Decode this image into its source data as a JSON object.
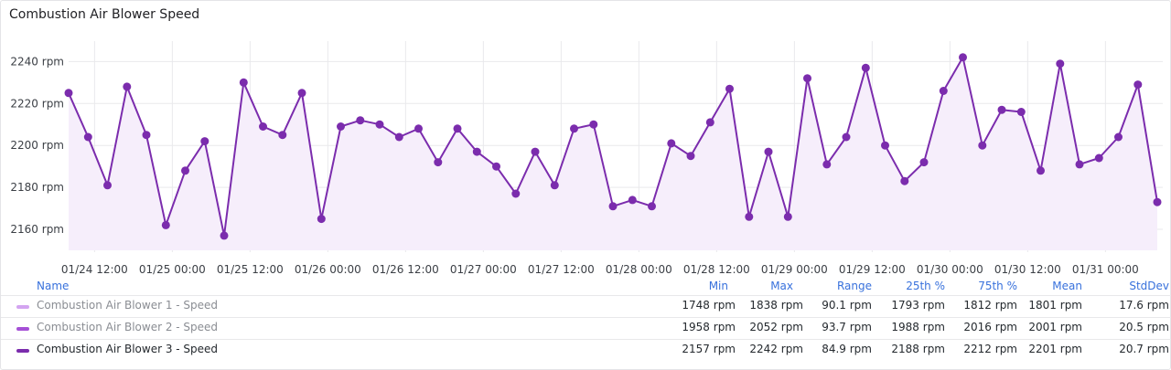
{
  "panel": {
    "title": "Combustion Air Blower Speed"
  },
  "colors": {
    "series": "#7b2cad",
    "fill": "#f6eefb",
    "grid": "#e9e9ec"
  },
  "chart_data": {
    "type": "line",
    "title": "Combustion Air Blower Speed",
    "y_unit": "rpm",
    "ylim": [
      2150,
      2248
    ],
    "xlim": [
      "01/24 08:00",
      "01/31 20:00"
    ],
    "y_ticks": [
      "2160 rpm",
      "2180 rpm",
      "2200 rpm",
      "2220 rpm",
      "2240 rpm"
    ],
    "y_tick_values": [
      2160,
      2180,
      2200,
      2220,
      2240
    ],
    "x_ticks": [
      "01/24 12:00",
      "01/25 00:00",
      "01/25 12:00",
      "01/26 00:00",
      "01/26 12:00",
      "01/27 00:00",
      "01/27 12:00",
      "01/28 00:00",
      "01/28 12:00",
      "01/29 00:00",
      "01/29 12:00",
      "01/30 00:00",
      "01/30 12:00",
      "01/31 00:00"
    ],
    "x_tick_hours": [
      4,
      16,
      28,
      40,
      52,
      64,
      76,
      88,
      100,
      112,
      124,
      136,
      148,
      160
    ],
    "x_hours_note": "hours after 01/24 08:00",
    "grid": true,
    "series": [
      {
        "name": "Combustion Air Blower 3 - Speed",
        "x": [
          0,
          3,
          6,
          9,
          12,
          15,
          18,
          21,
          24,
          27,
          30,
          33,
          36,
          39,
          42,
          45,
          48,
          51,
          54,
          57,
          60,
          63,
          66,
          69,
          72,
          75,
          78,
          81,
          84,
          87,
          90,
          93,
          96,
          99,
          102,
          105,
          108,
          111,
          114,
          117,
          120,
          123,
          126,
          129,
          132,
          135,
          138,
          141,
          144,
          147,
          150,
          153,
          156,
          159,
          162,
          165,
          168
        ],
        "values": [
          2225,
          2204,
          2181,
          2228,
          2205,
          2162,
          2188,
          2202,
          2157,
          2230,
          2209,
          2205,
          2225,
          2165,
          2209,
          2212,
          2210,
          2204,
          2208,
          2192,
          2208,
          2197,
          2190,
          2177,
          2197,
          2181,
          2208,
          2210,
          2171,
          2174,
          2171,
          2201,
          2195,
          2211,
          2227,
          2166,
          2197,
          2166,
          2232,
          2191,
          2204,
          2237,
          2200,
          2183,
          2192,
          2226,
          2242,
          2200,
          2217,
          2216,
          2188,
          2239,
          2191,
          2194,
          2204,
          2229,
          2173
        ]
      }
    ]
  },
  "legend": {
    "headers": {
      "name": "Name",
      "min": "Min",
      "max": "Max",
      "range": "Range",
      "p25": "25th %",
      "p75": "75th %",
      "mean": "Mean",
      "stddev": "StdDev"
    },
    "rows": [
      {
        "name": "Combustion Air Blower 1 - Speed",
        "color": "#d3a4f0",
        "dimmed": true,
        "min": "1748 rpm",
        "max": "1838 rpm",
        "range": "90.1 rpm",
        "p25": "1793 rpm",
        "p75": "1812 rpm",
        "mean": "1801 rpm",
        "stddev": "17.6 rpm"
      },
      {
        "name": "Combustion Air Blower 2 - Speed",
        "color": "#a550d6",
        "dimmed": true,
        "min": "1958 rpm",
        "max": "2052 rpm",
        "range": "93.7 rpm",
        "p25": "1988 rpm",
        "p75": "2016 rpm",
        "mean": "2001 rpm",
        "stddev": "20.5 rpm"
      },
      {
        "name": "Combustion Air Blower 3 - Speed",
        "color": "#7b2cad",
        "dimmed": false,
        "min": "2157 rpm",
        "max": "2242 rpm",
        "range": "84.9 rpm",
        "p25": "2188 rpm",
        "p75": "2212 rpm",
        "mean": "2201 rpm",
        "stddev": "20.7 rpm"
      }
    ]
  }
}
